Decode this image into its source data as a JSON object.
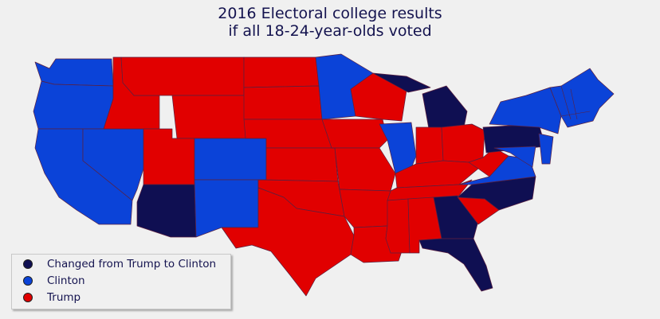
{
  "title_line1": "2016 Electoral college results",
  "title_line2": "if all 18-24-year-olds voted",
  "colors": {
    "changed": "#0f0f52",
    "clinton": "#0b43d8",
    "trump": "#e10000",
    "border": "#6b1f3a"
  },
  "legend": [
    {
      "key": "changed",
      "label": "Changed from Trump to Clinton"
    },
    {
      "key": "clinton",
      "label": "Clinton"
    },
    {
      "key": "trump",
      "label": "Trump"
    }
  ]
}
